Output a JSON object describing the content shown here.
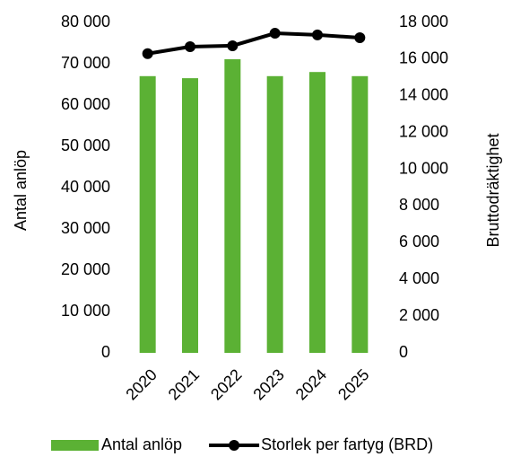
{
  "chart_data": {
    "type": "bar",
    "categories": [
      "2020",
      "2021",
      "2022",
      "2023",
      "2024",
      "2025"
    ],
    "series": [
      {
        "name": "Antal anlöp",
        "type": "bar",
        "color": "#5bb134",
        "values": [
          67000,
          66500,
          71100,
          67000,
          68000,
          67000
        ]
      },
      {
        "name": "Storlek per fartyg (BRD)",
        "type": "line",
        "axis": "y2",
        "color": "#000000",
        "values": [
          16300,
          16680,
          16730,
          17410,
          17320,
          17170
        ]
      }
    ],
    "ylabel": "Antal anlöp",
    "y2label": "Bruttodräktighet",
    "ylim": [
      0,
      80000
    ],
    "yticks": [
      0,
      {
        "value": 10000,
        "label": "10 000"
      },
      {
        "value": 20000,
        "label": "20 000"
      },
      {
        "value": 30000,
        "label": "30 000"
      },
      {
        "value": 40000,
        "label": "40 000"
      },
      {
        "value": 50000,
        "label": "50 000"
      },
      {
        "value": 60000,
        "label": "60 000"
      },
      {
        "value": 70000,
        "label": "70 000"
      },
      {
        "value": 80000,
        "label": "80 000"
      }
    ],
    "y2lim": [
      0,
      18000
    ],
    "y2ticks": [
      0,
      {
        "value": 2000,
        "label": "2 000"
      },
      {
        "value": 4000,
        "label": "4 000"
      },
      {
        "value": 6000,
        "label": "6 000"
      },
      {
        "value": 8000,
        "label": "8 000"
      },
      {
        "value": 10000,
        "label": "10 000"
      },
      {
        "value": 12000,
        "label": "12 000"
      },
      {
        "value": 14000,
        "label": "14 000"
      },
      {
        "value": 16000,
        "label": "16 000"
      },
      {
        "value": 18000,
        "label": "18 000"
      }
    ],
    "legend": "bottom"
  }
}
